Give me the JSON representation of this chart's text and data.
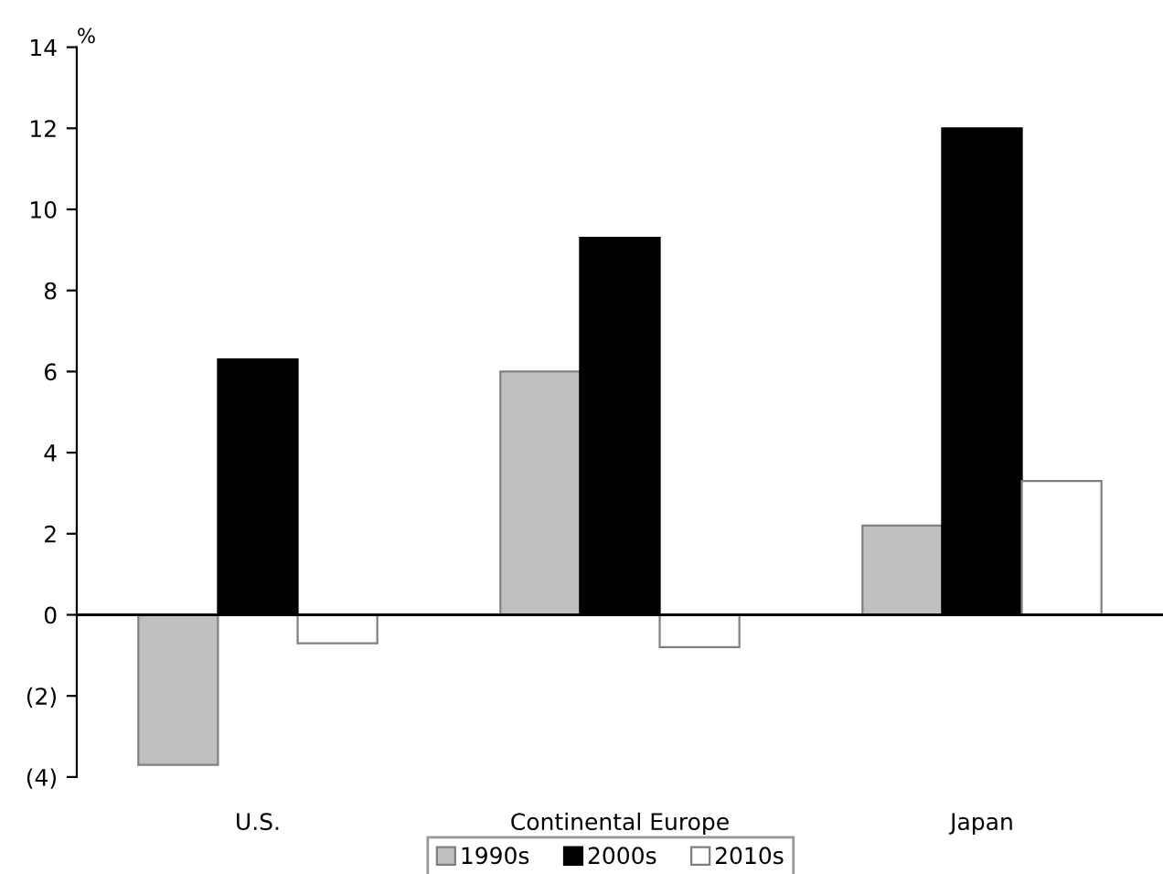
{
  "chart_data": {
    "type": "bar",
    "ylabel": "%",
    "categories": [
      "U.S.",
      "Continental Europe",
      "Japan"
    ],
    "series": [
      {
        "name": "1990s",
        "color": "#c0c0c0",
        "values": [
          -3.7,
          6.0,
          2.2
        ]
      },
      {
        "name": "2000s",
        "color": "#000000",
        "values": [
          6.3,
          9.3,
          12.0
        ]
      },
      {
        "name": "2010s",
        "color": "#ffffff",
        "values": [
          -0.7,
          -0.8,
          3.3
        ]
      }
    ],
    "ylim": [
      -4,
      14
    ],
    "yticks": [
      {
        "value": -4,
        "label": "(4)"
      },
      {
        "value": -2,
        "label": "(2)"
      },
      0,
      2,
      4,
      6,
      8,
      10,
      12,
      14
    ],
    "legend": "bottom"
  }
}
